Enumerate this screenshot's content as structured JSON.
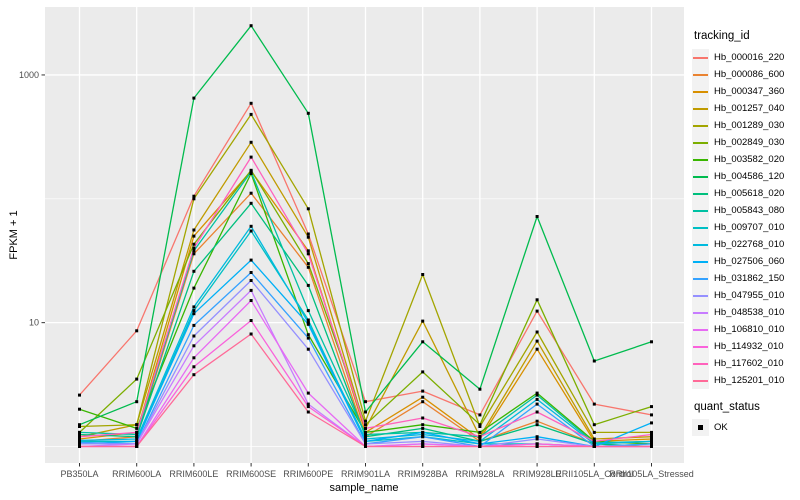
{
  "figure": {
    "background": "#FFFFFF",
    "panel_background": "#EBEBEB",
    "gridline_color": "#FFFFFF",
    "axis_text_color": "#4D4D4D",
    "tick_color": "#333333",
    "point_color": "#000000"
  },
  "chart_data": {
    "type": "line",
    "title": "",
    "xlabel": "sample_name",
    "ylabel": "FPKM + 1",
    "y_scale": "log10",
    "ylim": [
      1,
      3000
    ],
    "grid": true,
    "legend_position": "right",
    "legend_title": "tracking_id",
    "y_ticks": [
      {
        "label": "1000",
        "value": 1000
      },
      {
        "label": "10",
        "value": 10
      }
    ],
    "y_minor_gridlines": [
      100,
      1
    ],
    "categories": [
      "PB350LA",
      "RRIM600LA",
      "RRIM600LE",
      "RRIM600SE",
      "RRIM600PE",
      "RRIM901LA",
      "RRIM928BA",
      "RRIM928LA",
      "RRIM928LE",
      "RRII105LA_Control",
      "RRII105LA_Stressed"
    ],
    "series": [
      {
        "name": "Hb_000016_220",
        "color": "#F8766D",
        "values": [
          2.6,
          8.6,
          105,
          590,
          52,
          2.3,
          2.8,
          1.8,
          12.4,
          2.2,
          1.8
        ]
      },
      {
        "name": "Hb_000086_600",
        "color": "#EA8331",
        "values": [
          1.1,
          1.2,
          36,
          111,
          28,
          1.2,
          2.3,
          1.1,
          1.6,
          1.05,
          1.1
        ]
      },
      {
        "name": "Hb_000347_360",
        "color": "#D89000",
        "values": [
          1.15,
          1.3,
          50,
          168,
          38,
          1.3,
          2.5,
          1.15,
          6.1,
          1.1,
          1.15
        ]
      },
      {
        "name": "Hb_001257_040",
        "color": "#C09B00",
        "values": [
          1.2,
          1.5,
          56,
          286,
          49,
          1.4,
          10.3,
          1.2,
          7.1,
          1.15,
          1.2
        ]
      },
      {
        "name": "Hb_001289_030",
        "color": "#A3A500",
        "values": [
          1.45,
          1.5,
          100,
          480,
          83,
          1.6,
          24.5,
          1.45,
          8.4,
          1.3,
          1.3
        ]
      },
      {
        "name": "Hb_002849_030",
        "color": "#7CAE00",
        "values": [
          1.3,
          3.5,
          43,
          170,
          30,
          1.5,
          4.0,
          1.5,
          15.3,
          1.5,
          2.1
        ]
      },
      {
        "name": "Hb_003582_020",
        "color": "#39B600",
        "values": [
          2.0,
          1.4,
          19,
          160,
          8.0,
          1.3,
          1.5,
          1.3,
          2.7,
          1.1,
          1.05
        ]
      },
      {
        "name": "Hb_004586_120",
        "color": "#00BB4E",
        "values": [
          1.5,
          2.3,
          650,
          2500,
          490,
          1.9,
          7.0,
          2.9,
          72,
          4.9,
          7.0
        ]
      },
      {
        "name": "Hb_005618_020",
        "color": "#00BF7D",
        "values": [
          1.25,
          1.2,
          26,
          92,
          20,
          1.2,
          1.4,
          1.1,
          1.5,
          1.05,
          1.0
        ]
      },
      {
        "name": "Hb_005843_080",
        "color": "#00C1A3",
        "values": [
          1.3,
          1.25,
          38,
          165,
          12.5,
          1.25,
          1.3,
          1.2,
          2.6,
          1.07,
          1.1
        ]
      },
      {
        "name": "Hb_009707_010",
        "color": "#00BFC4",
        "values": [
          1.1,
          1.1,
          12.5,
          55,
          10.5,
          1.1,
          1.2,
          1.05,
          1.05,
          1.0,
          1.05
        ]
      },
      {
        "name": "Hb_022768_010",
        "color": "#00BADE",
        "values": [
          1.12,
          1.15,
          13.4,
          60,
          10,
          1.15,
          1.25,
          1.1,
          2.4,
          1.05,
          1.1
        ]
      },
      {
        "name": "Hb_027506_060",
        "color": "#00B0F6",
        "values": [
          1.05,
          1.1,
          11.8,
          32,
          9.7,
          1.1,
          1.3,
          1.05,
          1.2,
          1.0,
          1.55
        ]
      },
      {
        "name": "Hb_031862_150",
        "color": "#35A2FF",
        "values": [
          1.08,
          1.05,
          9.5,
          25.4,
          7.5,
          1.05,
          1.2,
          1.0,
          2.2,
          1.0,
          1.05
        ]
      },
      {
        "name": "Hb_047955_010",
        "color": "#9590FF",
        "values": [
          1.05,
          1.05,
          7.8,
          21.9,
          6.1,
          1.05,
          1.1,
          1.0,
          1.15,
          1.0,
          1.0
        ]
      },
      {
        "name": "Hb_048538_010",
        "color": "#C77CFF",
        "values": [
          1.0,
          1.05,
          6.5,
          18.2,
          2.2,
          1.0,
          1.05,
          1.0,
          1.05,
          1.0,
          1.0
        ]
      },
      {
        "name": "Hb_106810_010",
        "color": "#E76BF3",
        "values": [
          1.0,
          1.0,
          5.2,
          15.1,
          2.7,
          1.0,
          1.05,
          1.0,
          1.0,
          1.0,
          1.0
        ]
      },
      {
        "name": "Hb_114932_010",
        "color": "#FA62DB",
        "values": [
          1.0,
          1.0,
          4.4,
          10.4,
          2.1,
          1.0,
          1.0,
          1.0,
          1.05,
          1.0,
          1.0
        ]
      },
      {
        "name": "Hb_117602_010",
        "color": "#FF62BC",
        "values": [
          1.2,
          1.3,
          40,
          217,
          36,
          1.4,
          1.7,
          1.2,
          1.9,
          1.1,
          1.25
        ]
      },
      {
        "name": "Hb_125201_010",
        "color": "#FF6A98",
        "values": [
          1.0,
          1.0,
          3.8,
          8.1,
          1.9,
          1.0,
          1.0,
          1.0,
          1.0,
          1.0,
          1.0
        ]
      }
    ],
    "status_legend": {
      "title": "quant_status",
      "items": [
        {
          "label": "OK",
          "shape": "filled-square",
          "color": "#000000"
        }
      ]
    }
  }
}
